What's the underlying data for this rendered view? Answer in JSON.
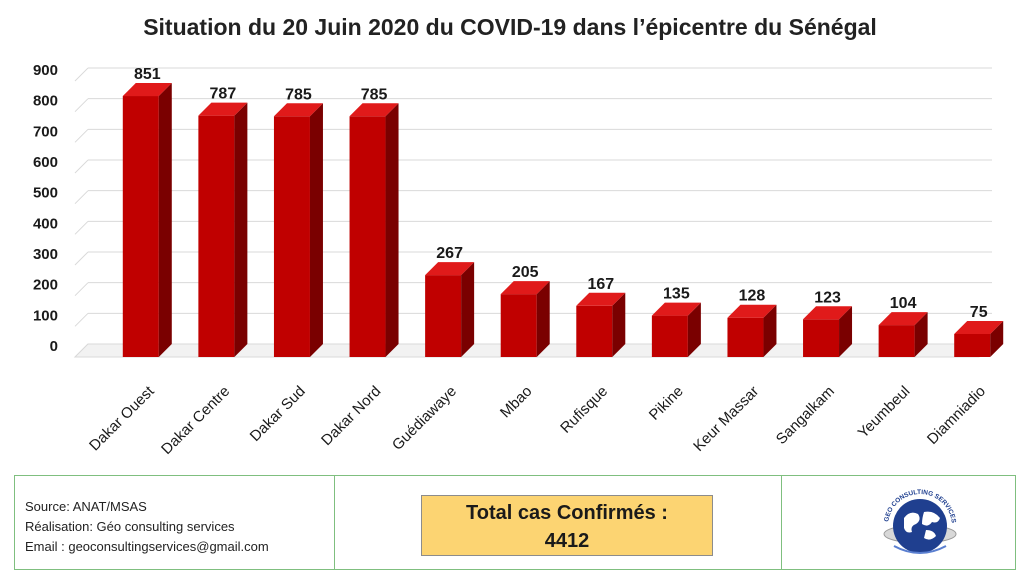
{
  "chart_data": {
    "type": "bar",
    "title": "Situation du 20 Juin 2020 du COVID-19 dans l’épicentre du Sénégal",
    "categories": [
      "Dakar Ouest",
      "Dakar Centre",
      "Dakar Sud",
      "Dakar Nord",
      "Guédiawaye",
      "Mbao",
      "Rufisque",
      "Pikine",
      "Keur Massar",
      "Sangalkam",
      "Yeumbeul",
      "Diamniadio"
    ],
    "values": [
      851,
      787,
      785,
      785,
      267,
      205,
      167,
      135,
      128,
      123,
      104,
      75
    ],
    "ylim": [
      0,
      900
    ],
    "yticks": [
      "0",
      "100",
      "200",
      "300",
      "400",
      "500",
      "600",
      "700",
      "800",
      "900"
    ],
    "grid": true,
    "bar_color": "#c00000"
  },
  "footer": {
    "source": "Source: ANAT/MSAS",
    "realisation": "Réalisation: Géo consulting services",
    "email": "Email : geoconsultingservices@gmail.com",
    "total_label": "Total cas Confirmés :",
    "total_value": "4412",
    "logo_text": "GEO CONSULTING SERVICES"
  }
}
